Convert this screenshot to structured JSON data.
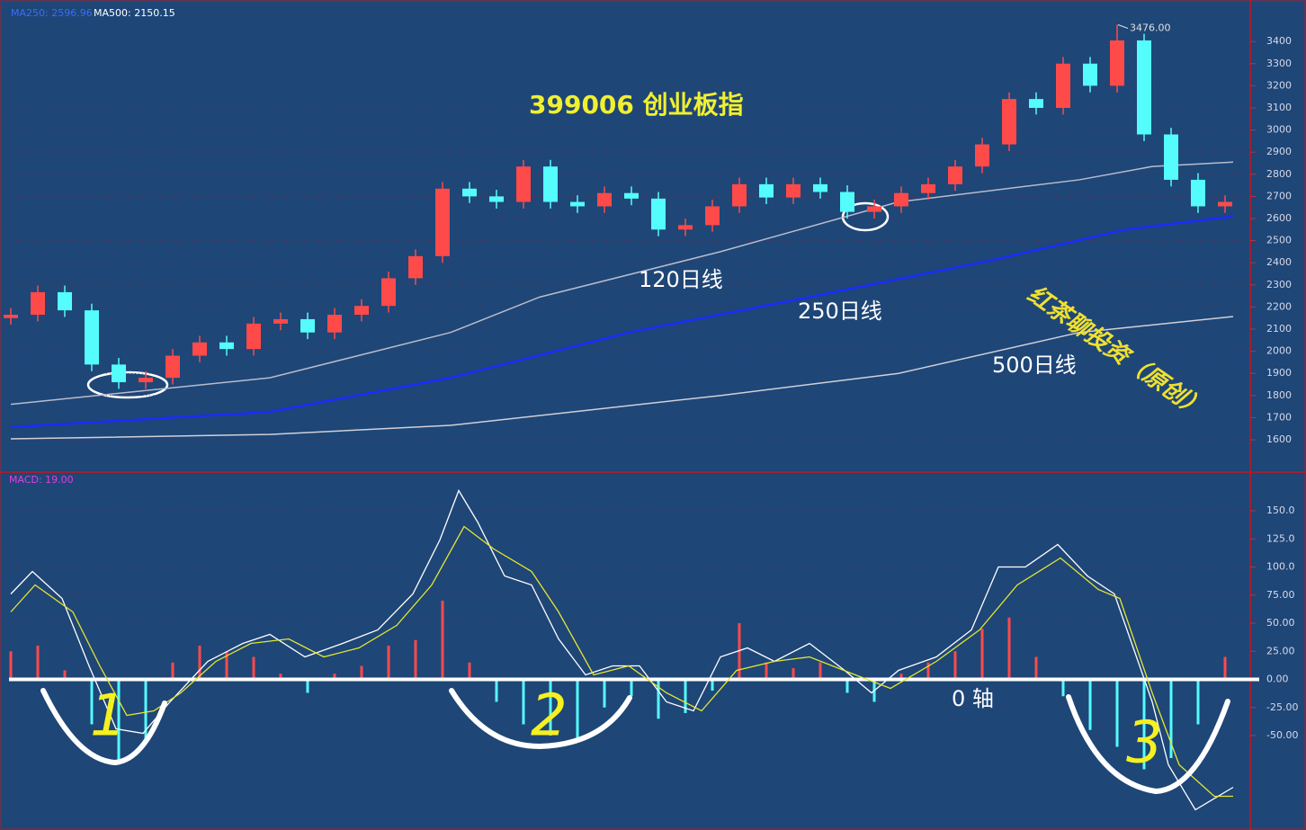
{
  "chart_data": [
    {
      "type": "candlestick",
      "title": "399006 创业板指",
      "header_labels": [
        "MA250: 2596.96",
        "MA500: 2150.15"
      ],
      "peak_label": "3476.00",
      "watermark": "红茶聊投资（原创）",
      "up_color": "#ff4a4a",
      "down_color": "#54fcfc",
      "open": [
        2150,
        2165,
        2267,
        2185,
        1940,
        1860,
        1880,
        1980,
        2040,
        2010,
        2125,
        2145,
        2085,
        2165,
        2205,
        2330,
        2430,
        2735,
        2700,
        2675,
        2835,
        2675,
        2655,
        2715,
        2690,
        2550,
        2570,
        2655,
        2755,
        2695,
        2755,
        2720,
        2630,
        2655,
        2715,
        2755,
        2835,
        2935,
        3140,
        3100,
        3300,
        3200,
        3405,
        2980,
        2775,
        2655
      ],
      "high": [
        2195,
        2297,
        2297,
        2215,
        1970,
        1910,
        2010,
        2070,
        2070,
        2155,
        2175,
        2175,
        2195,
        2235,
        2360,
        2460,
        2765,
        2765,
        2730,
        2865,
        2865,
        2705,
        2745,
        2745,
        2720,
        2600,
        2685,
        2785,
        2785,
        2785,
        2785,
        2750,
        2685,
        2745,
        2785,
        2865,
        2965,
        3170,
        3170,
        3330,
        3330,
        3476,
        3435,
        3010,
        2805,
        2705
      ],
      "low": [
        2120,
        2135,
        2155,
        1910,
        1830,
        1830,
        1850,
        1950,
        1980,
        1980,
        2095,
        2055,
        2055,
        2135,
        2175,
        2300,
        2400,
        2670,
        2645,
        2645,
        2645,
        2625,
        2625,
        2660,
        2520,
        2520,
        2540,
        2625,
        2665,
        2665,
        2690,
        2600,
        2600,
        2625,
        2685,
        2725,
        2805,
        2905,
        3070,
        3070,
        3170,
        3170,
        2950,
        2745,
        2625,
        2625
      ],
      "close": [
        2165,
        2267,
        2185,
        1940,
        1860,
        1880,
        1980,
        2040,
        2010,
        2125,
        2145,
        2085,
        2165,
        2205,
        2330,
        2430,
        2735,
        2700,
        2675,
        2835,
        2675,
        2655,
        2715,
        2690,
        2550,
        2570,
        2655,
        2755,
        2695,
        2755,
        2720,
        2630,
        2655,
        2715,
        2755,
        2835,
        2935,
        3140,
        3100,
        3300,
        3200,
        3405,
        2980,
        2775,
        2655,
        2675
      ],
      "lines": [
        {
          "name": "120日线",
          "color": "#b8bccc",
          "x": [
            0,
            9.6,
            16.3,
            19.6,
            26.3,
            32.9,
            39.6,
            42.3,
            45.3
          ],
          "values": [
            1760,
            1880,
            2085,
            2245,
            2450,
            2675,
            2775,
            2835,
            2855
          ]
        },
        {
          "name": "250日线",
          "color": "#1a2cff",
          "x": [
            0,
            9.6,
            16.3,
            22.9,
            29.6,
            36.3,
            41.3,
            45.3
          ],
          "values": [
            1657,
            1726,
            1880,
            2085,
            2245,
            2410,
            2550,
            2610
          ]
        },
        {
          "name": "500日线",
          "color": "#d0d0d8",
          "x": [
            0,
            9.6,
            16.3,
            26.3,
            32.9,
            39.6,
            45.3
          ],
          "values": [
            1604,
            1624,
            1665,
            1800,
            1900,
            2085,
            2157
          ]
        }
      ],
      "ylim": [
        1466,
        3547
      ],
      "yticks": [
        1600,
        1700,
        1800,
        1900,
        2000,
        2100,
        2200,
        2300,
        2400,
        2500,
        2600,
        2700,
        2800,
        2900,
        3000,
        3100,
        3200,
        3300,
        3400
      ]
    },
    {
      "type": "macd",
      "title": "MACD: 19.00",
      "zero_label": "0  轴",
      "annotations": [
        "1",
        "2",
        "3"
      ],
      "lines": [
        {
          "color": "#ffffff",
          "x": [
            0,
            0.8,
            1.9,
            2.9,
            3.9,
            4.9,
            5.9,
            7.3,
            8.6,
            9.6,
            10.9,
            12.3,
            13.6,
            14.9,
            15.9,
            16.6,
            17.3,
            18.3,
            19.3,
            20.3,
            21.3,
            22.3,
            23.3,
            24.3,
            25.3,
            26.3,
            27.3,
            28.3,
            29.6,
            30.9,
            31.9,
            32.9,
            34.3,
            35.6,
            36.6,
            37.6,
            38.8,
            39.9,
            40.9,
            41.6,
            42.3,
            42.9,
            43.9,
            45.3
          ],
          "values": [
            76,
            96,
            72,
            12,
            -44,
            -48,
            -20,
            16,
            32,
            40,
            20,
            32,
            44,
            76,
            124,
            168,
            140,
            92,
            84,
            36,
            4,
            12,
            12,
            -20,
            -28,
            20,
            28,
            16,
            32,
            8,
            -12,
            8,
            20,
            44,
            100,
            100,
            120,
            92,
            76,
            28,
            -20,
            -76,
            -116,
            -96
          ]
        },
        {
          "color": "#e6e62e",
          "x": [
            0,
            0.9,
            2.3,
            3.3,
            4.3,
            5.3,
            6.3,
            7.6,
            8.9,
            10.3,
            11.6,
            12.9,
            14.3,
            15.6,
            16.8,
            17.9,
            19.3,
            20.3,
            21.6,
            22.9,
            24.3,
            25.6,
            26.9,
            28.3,
            29.6,
            31.3,
            32.6,
            34.3,
            35.9,
            37.3,
            38.9,
            40.3,
            41.1,
            42.3,
            43.3,
            44.6,
            45.3
          ],
          "values": [
            60,
            84,
            60,
            12,
            -32,
            -28,
            -12,
            16,
            32,
            36,
            20,
            28,
            48,
            84,
            136,
            116,
            96,
            60,
            4,
            12,
            -12,
            -28,
            8,
            16,
            20,
            4,
            -8,
            16,
            44,
            84,
            108,
            80,
            72,
            -12,
            -76,
            -104,
            -104
          ]
        }
      ],
      "histogram": {
        "up_color": "#ff4a4a",
        "down_color": "#54fcfc",
        "values": [
          25,
          30,
          8,
          -40,
          -75,
          -55,
          15,
          30,
          25,
          20,
          5,
          -12,
          5,
          12,
          30,
          35,
          70,
          15,
          -20,
          -40,
          -50,
          -55,
          -25,
          -15,
          -35,
          -30,
          -10,
          50,
          15,
          10,
          15,
          -12,
          -20,
          5,
          15,
          25,
          45,
          55,
          20,
          -15,
          -45,
          -60,
          -80,
          -70,
          -40,
          20
        ]
      },
      "ylim": [
        -130,
        182
      ],
      "yticks": [
        {
          "value": -50,
          "label": "-50.00"
        },
        {
          "value": -25,
          "label": "-25.00"
        },
        {
          "value": 0,
          "label": "0.00"
        },
        {
          "value": 25,
          "label": "25.00"
        },
        {
          "value": 50,
          "label": "50.00"
        },
        {
          "value": 75,
          "label": "75.00"
        },
        {
          "value": 100,
          "label": "100.0"
        },
        {
          "value": 125,
          "label": "125.0"
        },
        {
          "value": 150,
          "label": "150.0"
        }
      ]
    }
  ]
}
